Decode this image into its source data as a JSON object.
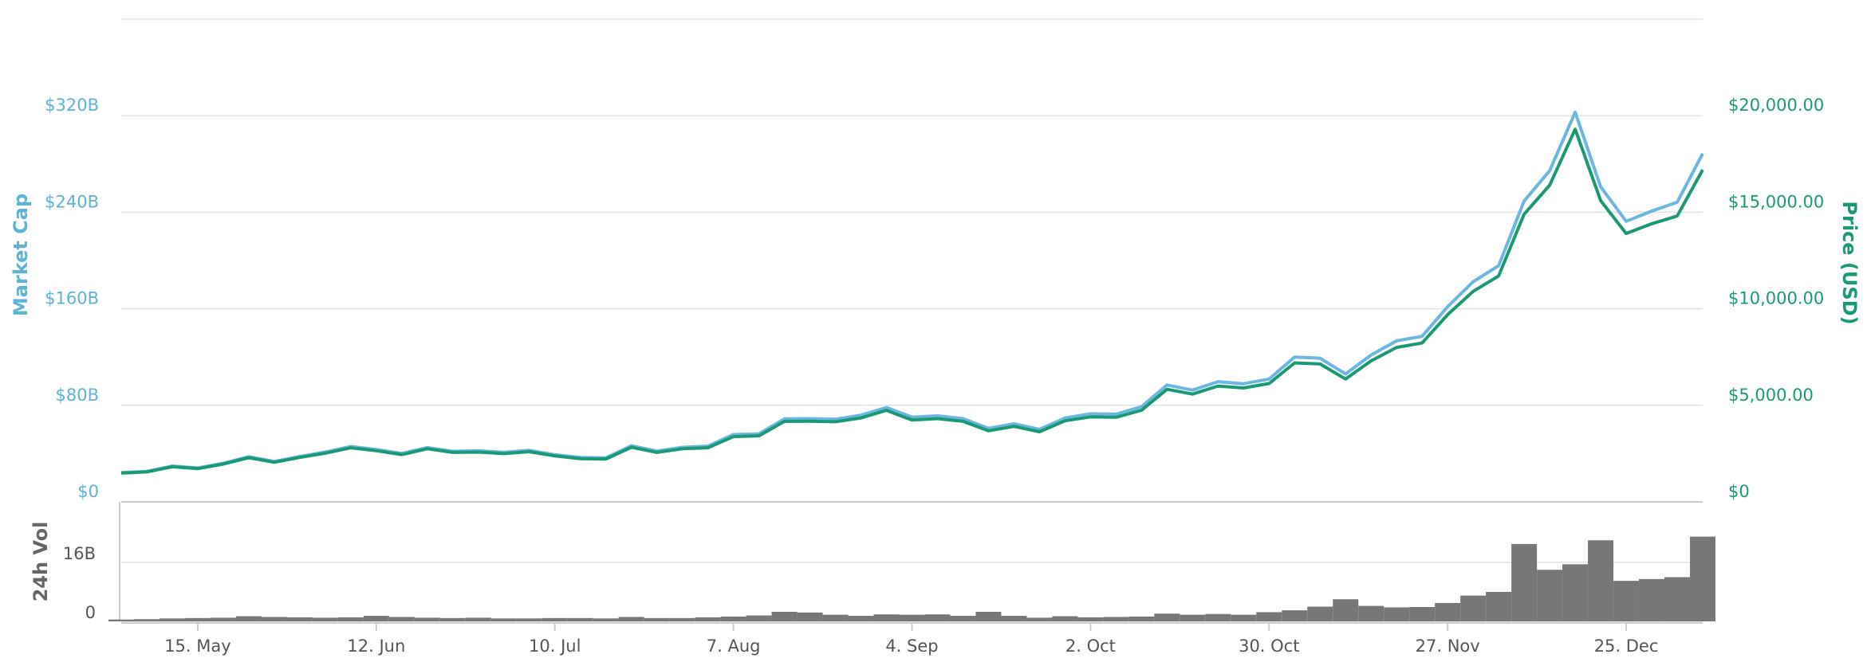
{
  "chart_data": {
    "type": "line",
    "y_label": "Market Cap",
    "y2_label": "Price (USD)",
    "y3_label": "24h Vol",
    "x": [
      null,
      null,
      null,
      "15. May",
      null,
      null,
      null,
      null,
      null,
      null,
      "12. Jun",
      null,
      null,
      null,
      null,
      null,
      null,
      "10. Jul",
      null,
      null,
      null,
      null,
      null,
      null,
      "7. Aug",
      null,
      null,
      null,
      null,
      null,
      null,
      "4. Sep",
      null,
      null,
      null,
      null,
      null,
      null,
      "2. Oct",
      null,
      null,
      null,
      null,
      null,
      null,
      "30. Oct",
      null,
      null,
      null,
      null,
      null,
      null,
      "27. Nov",
      null,
      null,
      null,
      null,
      null,
      null,
      "25. Dec",
      null,
      null,
      null
    ],
    "series": [
      {
        "name": "Market Cap",
        "color": "#6cb6e2",
        "axis": "y",
        "values": [
          24.3,
          25.3,
          29.7,
          28.1,
          32.0,
          37.4,
          33.5,
          37.6,
          41.3,
          45.9,
          43.4,
          40.1,
          45.0,
          41.9,
          42.3,
          41.1,
          42.7,
          39.1,
          36.8,
          36.5,
          46.5,
          42.1,
          45.2,
          46.2,
          55.8,
          56.4,
          68.8,
          69.0,
          68.5,
          71.8,
          78.2,
          70.2,
          71.3,
          69.0,
          60.9,
          64.7,
          60.1,
          69.5,
          73.0,
          72.7,
          78.9,
          96.8,
          92.6,
          99.6,
          97.9,
          101.8,
          120.0,
          119.0,
          106.0,
          121.7,
          133.4,
          137.2,
          161.7,
          182.4,
          195.7,
          249.3,
          274.4,
          322.9,
          261.0,
          232.5,
          240.9,
          248.3,
          288.6
        ]
      },
      {
        "name": "Price (USD)",
        "color": "#1a9a74",
        "axis": "y2",
        "values": [
          1490,
          1550,
          1820,
          1720,
          1960,
          2290,
          2050,
          2300,
          2520,
          2800,
          2650,
          2450,
          2750,
          2560,
          2580,
          2500,
          2600,
          2380,
          2240,
          2220,
          2830,
          2560,
          2750,
          2800,
          3380,
          3420,
          4170,
          4180,
          4150,
          4350,
          4740,
          4240,
          4310,
          4170,
          3680,
          3910,
          3630,
          4200,
          4400,
          4380,
          4750,
          5830,
          5580,
          6000,
          5900,
          6130,
          7200,
          7140,
          6360,
          7300,
          8000,
          8230,
          9700,
          10900,
          11700,
          14900,
          16400,
          19300,
          15600,
          13900,
          14400,
          14800,
          17200
        ]
      },
      {
        "name": "24h Vol",
        "color": "#777777",
        "axis": "y3",
        "type": "bar",
        "values": [
          0.5,
          0.6,
          0.8,
          0.9,
          1.0,
          1.4,
          1.2,
          1.1,
          1.0,
          1.1,
          1.5,
          1.2,
          1.0,
          0.9,
          1.0,
          0.8,
          0.8,
          0.9,
          0.9,
          0.8,
          1.2,
          0.9,
          0.9,
          1.1,
          1.3,
          1.6,
          2.6,
          2.4,
          1.8,
          1.5,
          1.9,
          1.8,
          1.9,
          1.5,
          2.6,
          1.5,
          1.0,
          1.4,
          1.1,
          1.2,
          1.3,
          2.1,
          1.8,
          2.0,
          1.8,
          2.5,
          3.0,
          4.0,
          6.0,
          4.2,
          3.8,
          3.9,
          5.0,
          7.0,
          8.0,
          21.0,
          14.0,
          15.5,
          22.0,
          11.0,
          11.5,
          12.0,
          23.0
        ]
      }
    ],
    "ylim": [
      0,
      400
    ],
    "yticks": [
      {
        "value": 0,
        "label": "$0"
      },
      {
        "value": 80,
        "label": "$80B"
      },
      {
        "value": 160,
        "label": "$160B"
      },
      {
        "value": 240,
        "label": "$240B"
      },
      {
        "value": 320,
        "label": "$320B"
      }
    ],
    "y2lim": [
      0,
      25000
    ],
    "y2ticks": [
      {
        "value": 0,
        "label": "$0"
      },
      {
        "value": 5000,
        "label": "$5,000.00"
      },
      {
        "value": 10000,
        "label": "$10,000.00"
      },
      {
        "value": 15000,
        "label": "$15,000.00"
      },
      {
        "value": 20000,
        "label": "$20,000.00"
      }
    ],
    "y3lim": [
      0,
      32
    ],
    "y3ticks": [
      0,
      {
        "value": 16,
        "label": "16B"
      }
    ],
    "grid": true
  }
}
